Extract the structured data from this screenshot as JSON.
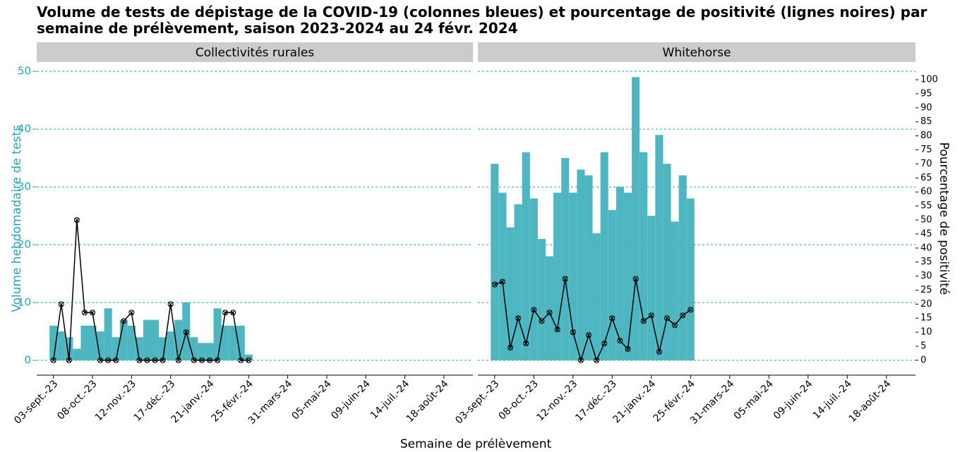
{
  "chart_data": {
    "type": "bar",
    "title": "Volume de tests de dépistage de la COVID-19 (colonnes bleues) et pourcentage de positivité (lignes noires) par semaine de prélèvement, saison 2023-2024 au 24 févr. 2024",
    "x_label": "Semaine de prélèvement",
    "y_label": "Volume hebdomadaire de tests",
    "y2_label": "Pourcentage de positivité",
    "ylim": [
      -2.56,
      51.6
    ],
    "yticks": [
      0,
      10,
      20,
      30,
      40,
      50
    ],
    "y2lim": [
      -5.3,
      106.3
    ],
    "y2ticks": [
      0,
      5,
      10,
      15,
      20,
      25,
      30,
      35,
      40,
      45,
      50,
      55,
      60,
      65,
      70,
      75,
      80,
      85,
      90,
      95,
      100
    ],
    "grid": true,
    "xlim": [
      "2023-08-19",
      "2024-09-13"
    ],
    "xticks": [
      {
        "value": "2023-09-03",
        "label": "03-sept.-23"
      },
      {
        "value": "2023-10-08",
        "label": "08-oct.-23"
      },
      {
        "value": "2023-11-12",
        "label": "12-nov.-23"
      },
      {
        "value": "2023-12-17",
        "label": "17-déc.-23"
      },
      {
        "value": "2024-01-21",
        "label": "21-janv.-24"
      },
      {
        "value": "2024-02-25",
        "label": "25-févr.-24"
      },
      {
        "value": "2024-03-31",
        "label": "31-mars-24"
      },
      {
        "value": "2024-05-05",
        "label": "05-mai-24"
      },
      {
        "value": "2024-06-09",
        "label": "09-juin-24"
      },
      {
        "value": "2024-07-14",
        "label": "14-juil.-24"
      },
      {
        "value": "2024-08-18",
        "label": "18-août-24"
      }
    ],
    "x": [
      "2023-09-03",
      "2023-09-10",
      "2023-09-17",
      "2023-09-24",
      "2023-10-01",
      "2023-10-08",
      "2023-10-15",
      "2023-10-22",
      "2023-10-29",
      "2023-11-05",
      "2023-11-12",
      "2023-11-19",
      "2023-11-26",
      "2023-12-03",
      "2023-12-10",
      "2023-12-17",
      "2023-12-24",
      "2023-12-31",
      "2024-01-07",
      "2024-01-14",
      "2024-01-21",
      "2024-01-28",
      "2024-02-04",
      "2024-02-11",
      "2024-02-18",
      "2024-02-25"
    ],
    "facets": [
      {
        "title": "Collectivités rurales",
        "series": [
          {
            "type": "bar",
            "color": "#4db6c1",
            "values": [
              6,
              5,
              4,
              2,
              6,
              6,
              5,
              9,
              4,
              7,
              6,
              4,
              7,
              7,
              4,
              5,
              7,
              10,
              4,
              3,
              3,
              9,
              6,
              6,
              6,
              1
            ]
          },
          {
            "type": "line",
            "axis": "y2",
            "color": "#000000",
            "values": [
              0,
              20,
              0,
              50,
              17,
              17,
              0,
              0,
              0,
              14,
              17,
              0,
              0,
              0,
              0,
              20,
              0,
              10,
              0,
              0,
              0,
              0,
              17,
              17,
              0,
              0
            ]
          }
        ]
      },
      {
        "title": "Whitehorse",
        "series": [
          {
            "type": "bar",
            "color": "#4db6c1",
            "values": [
              34,
              29,
              23,
              27,
              36,
              28,
              21,
              18,
              29,
              35,
              29,
              33,
              32,
              22,
              36,
              26,
              30,
              29,
              49,
              36,
              25,
              39,
              34,
              24,
              32,
              28
            ]
          },
          {
            "type": "line",
            "axis": "y2",
            "color": "#000000",
            "values": [
              27,
              28,
              4.5,
              15,
              6,
              18,
              14,
              17,
              11,
              29,
              10,
              0,
              9,
              0,
              6,
              15,
              7,
              4,
              29,
              14,
              16,
              3,
              15,
              12.5,
              16,
              18
            ]
          }
        ]
      }
    ]
  }
}
